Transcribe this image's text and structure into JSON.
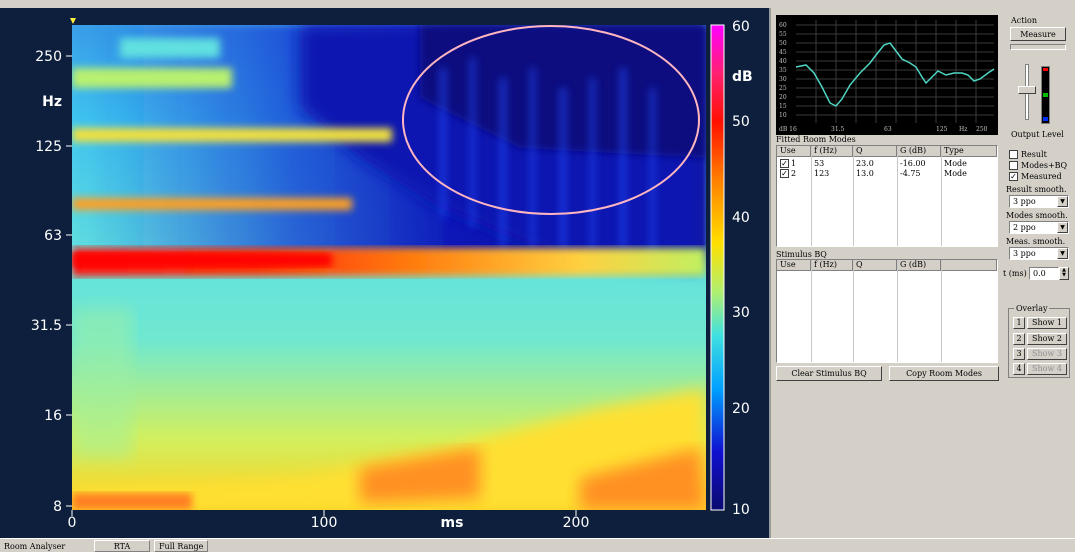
{
  "spectrogram": {
    "y_ticks": [
      "250",
      "Hz",
      "125",
      "63",
      "31.5",
      "16",
      "8"
    ],
    "x_ticks": [
      "0",
      "100",
      "ms",
      "200"
    ],
    "colorbar_ticks": [
      "60",
      "dB",
      "50",
      "40",
      "30",
      "20",
      "10"
    ],
    "colors": {
      "background": "#0d1f3c",
      "highlight_circle": "#ffb6c1"
    }
  },
  "mini_chart": {
    "y_ticks": [
      "60",
      "55",
      "50",
      "45",
      "40",
      "35",
      "30",
      "25",
      "20",
      "15",
      "10"
    ],
    "x_ticks": [
      "dB 16",
      "31.5",
      "63",
      "125",
      "Hz",
      "250"
    ],
    "line_color": "#4fd6c4"
  },
  "action": {
    "title": "Action",
    "measure_button": "Measure",
    "output_level_label": "Output Level"
  },
  "room_modes": {
    "title": "Fitted Room Modes",
    "columns": [
      "Use",
      "f (Hz)",
      "Q",
      "G (dB)",
      "Type"
    ],
    "rows": [
      {
        "use": "1",
        "f": "53",
        "q": "23.0",
        "g": "-16.00",
        "type": "Mode"
      },
      {
        "use": "2",
        "f": "123",
        "q": "13.0",
        "g": "-4.75",
        "type": "Mode"
      }
    ]
  },
  "stimulus_bq": {
    "title": "Stimulus BQ",
    "columns": [
      "Use",
      "f (Hz)",
      "Q",
      "G (dB)"
    ]
  },
  "buttons": {
    "clear_stimulus": "Clear Stimulus BQ",
    "copy_room_modes": "Copy Room Modes"
  },
  "display_options": {
    "result": "Result",
    "modes_bq": "Modes+BQ",
    "measured": "Measured",
    "result_smooth_label": "Result smooth.",
    "result_smooth_value": "3 ppo",
    "modes_smooth_label": "Modes smooth.",
    "modes_smooth_value": "2 ppo",
    "meas_smooth_label": "Meas. smooth.",
    "meas_smooth_value": "3 ppo",
    "t_label": "t (ms)",
    "t_value": "0.0"
  },
  "overlay": {
    "title": "Overlay",
    "items": [
      {
        "num": "1",
        "label": "Show 1"
      },
      {
        "num": "2",
        "label": "Show 2"
      },
      {
        "num": "3",
        "label": "Show 3"
      },
      {
        "num": "4",
        "label": "Show 4"
      }
    ]
  },
  "status_bar": {
    "app": "Room Analyser",
    "tab_rta": "RTA",
    "tab_range": "Full Range"
  }
}
